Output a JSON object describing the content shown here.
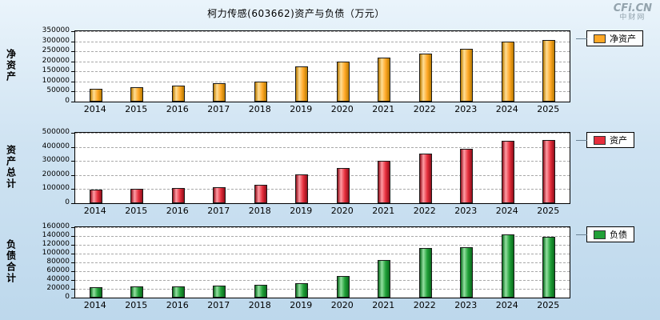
{
  "page": {
    "title": "柯力传感(603662)资产与负债（万元）",
    "watermark": {
      "line1": "CFi.CN",
      "line2": "中财网"
    }
  },
  "chart_data": [
    {
      "type": "bar",
      "id": "net-assets",
      "ylabel": "净资产",
      "legend": "净资产",
      "categories": [
        "2014",
        "2015",
        "2016",
        "2017",
        "2018",
        "2019",
        "2020",
        "2021",
        "2022",
        "2023",
        "2024",
        "2025"
      ],
      "values": [
        65000,
        73000,
        80000,
        90000,
        100000,
        177000,
        197000,
        217000,
        237000,
        261000,
        300000,
        305000
      ],
      "ylim": [
        0,
        350000
      ],
      "yticks": [
        0,
        50000,
        100000,
        150000,
        200000,
        250000,
        300000,
        350000
      ],
      "colors": {
        "main": "#FFA826",
        "light": "#FFDD94",
        "dark": "#B97A00"
      },
      "grid": true,
      "legend_position": "right"
    },
    {
      "type": "bar",
      "id": "total-assets",
      "ylabel": "资产总计",
      "legend": "资产",
      "categories": [
        "2014",
        "2015",
        "2016",
        "2017",
        "2018",
        "2019",
        "2020",
        "2021",
        "2022",
        "2023",
        "2024",
        "2025"
      ],
      "values": [
        95000,
        105000,
        110000,
        115000,
        130000,
        205000,
        250000,
        300000,
        355000,
        385000,
        445000,
        450000
      ],
      "ylim": [
        0,
        500000
      ],
      "yticks": [
        0,
        100000,
        200000,
        300000,
        400000,
        500000
      ],
      "colors": {
        "main": "#E62E3C",
        "light": "#FF9CA4",
        "dark": "#8F0E1A"
      },
      "grid": true,
      "legend_position": "right"
    },
    {
      "type": "bar",
      "id": "liabilities",
      "ylabel": "负债合计",
      "legend": "负债",
      "categories": [
        "2014",
        "2015",
        "2016",
        "2017",
        "2018",
        "2019",
        "2020",
        "2021",
        "2022",
        "2023",
        "2024",
        "2025"
      ],
      "values": [
        23000,
        25000,
        26000,
        28000,
        30000,
        33000,
        50000,
        85000,
        112000,
        114000,
        143000,
        139000
      ],
      "ylim": [
        0,
        160000
      ],
      "yticks": [
        0,
        20000,
        40000,
        60000,
        80000,
        100000,
        120000,
        140000,
        160000
      ],
      "colors": {
        "main": "#21A038",
        "light": "#93E0A0",
        "dark": "#0A6B1D"
      },
      "grid": true,
      "legend_position": "right"
    }
  ]
}
